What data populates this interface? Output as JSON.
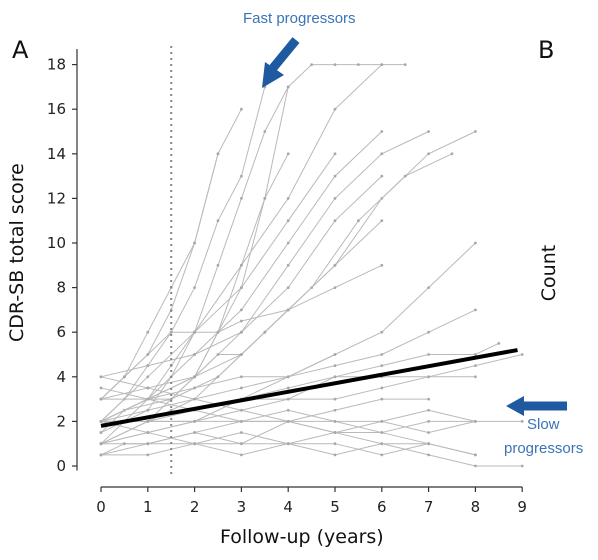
{
  "panel_labels": {
    "left": "A",
    "right": "B"
  },
  "right_axis_label": "Count",
  "annotations": {
    "fast": "Fast progressors",
    "slow_line1": "Slow",
    "slow_line2": "progressors"
  },
  "colors": {
    "trajectories": "#b9b9b9",
    "mean_line": "#000000",
    "arrow": "#1f5aa0",
    "annotation_text": "#3a74b7"
  },
  "chart_data": {
    "type": "line",
    "xlabel": "Follow-up (years)",
    "ylabel": "CDR-SB total score",
    "xlim": [
      -0.4,
      9.3
    ],
    "ylim": [
      -0.5,
      19
    ],
    "xticks": [
      0,
      1,
      2,
      3,
      4,
      5,
      6,
      7,
      8,
      9
    ],
    "yticks": [
      0,
      2,
      4,
      6,
      8,
      10,
      12,
      14,
      16,
      18
    ],
    "vertical_reference_line": {
      "x": 1.5,
      "style": "dotted"
    },
    "mean_trend": {
      "x": [
        0,
        8.9
      ],
      "y": [
        1.8,
        5.2
      ]
    },
    "series": [
      {
        "x": [
          0,
          0.5,
          1,
          1.5,
          2,
          2.5,
          3,
          3.5,
          4
        ],
        "y": [
          1,
          2,
          2.5,
          4,
          6,
          9,
          12,
          15,
          17
        ]
      },
      {
        "x": [
          0,
          0.5,
          1,
          1.5,
          2,
          2.5,
          3,
          3.5
        ],
        "y": [
          2,
          3,
          4.5,
          6,
          8,
          11,
          13,
          17
        ]
      },
      {
        "x": [
          0,
          0.5,
          1,
          1.5,
          2,
          3,
          4,
          5,
          6,
          6.5
        ],
        "y": [
          1.5,
          2.5,
          3,
          4.5,
          6,
          9,
          12,
          16,
          18,
          18
        ]
      },
      {
        "x": [
          0,
          1,
          2,
          3,
          3.5,
          4,
          4.5,
          5,
          5.5,
          6
        ],
        "y": [
          2,
          3,
          4,
          8,
          12,
          17,
          18,
          18,
          18,
          18
        ]
      },
      {
        "x": [
          0,
          0.5,
          1,
          1.5,
          2,
          2.5,
          3
        ],
        "y": [
          3,
          4,
          6,
          8,
          10,
          14,
          16
        ]
      },
      {
        "x": [
          0,
          1,
          2,
          3,
          4,
          5,
          6,
          7,
          8
        ],
        "y": [
          2,
          2.5,
          3,
          5,
          7,
          9,
          12,
          14,
          15
        ]
      },
      {
        "x": [
          0,
          1,
          2,
          2.5,
          3,
          3.5,
          4
        ],
        "y": [
          1,
          2,
          4,
          6,
          9,
          12,
          14
        ]
      },
      {
        "x": [
          0,
          0.5,
          1.5,
          2.5,
          3.5,
          4.5,
          5.5,
          6.5,
          7.5
        ],
        "y": [
          2,
          2.5,
          3,
          4,
          6,
          8,
          11,
          13,
          14
        ]
      },
      {
        "x": [
          0,
          1,
          2,
          3,
          4,
          5,
          6,
          7
        ],
        "y": [
          3,
          3.5,
          4,
          6,
          9,
          12,
          14,
          15
        ]
      },
      {
        "x": [
          0,
          1,
          2,
          3,
          4,
          5,
          6,
          7,
          8
        ],
        "y": [
          1,
          1.5,
          2,
          3,
          4,
          5,
          6,
          8,
          10
        ]
      },
      {
        "x": [
          0,
          1,
          2,
          3,
          4,
          5,
          6
        ],
        "y": [
          2,
          3,
          5,
          7,
          10,
          13,
          15
        ]
      },
      {
        "x": [
          0,
          0.5,
          1,
          1.5,
          2,
          2.5
        ],
        "y": [
          3,
          4,
          5,
          7,
          10,
          14
        ]
      },
      {
        "x": [
          0,
          1,
          2,
          3,
          4,
          5,
          6,
          7,
          8,
          8.5
        ],
        "y": [
          2,
          2,
          2.5,
          3,
          3.5,
          4,
          4.5,
          5,
          5,
          5.5
        ]
      },
      {
        "x": [
          0,
          1,
          2,
          3,
          4,
          5,
          6,
          7,
          8
        ],
        "y": [
          1,
          1,
          1.5,
          1,
          2,
          1.5,
          2,
          1.5,
          2
        ]
      },
      {
        "x": [
          0,
          1,
          2,
          3,
          4,
          5,
          6,
          7,
          8,
          9
        ],
        "y": [
          0.5,
          1,
          1,
          0.5,
          1,
          0.5,
          1,
          0.5,
          0,
          0
        ]
      },
      {
        "x": [
          0,
          1,
          2,
          3,
          4,
          5,
          6,
          7
        ],
        "y": [
          4,
          3.5,
          3,
          2.5,
          2,
          2,
          1.5,
          1
        ]
      },
      {
        "x": [
          0,
          1,
          2,
          3,
          4,
          5,
          6,
          7,
          8
        ],
        "y": [
          3,
          3,
          3.5,
          4,
          4,
          4.5,
          5,
          6,
          7
        ]
      },
      {
        "x": [
          0,
          0.5,
          1,
          1.5,
          2,
          3,
          4,
          5
        ],
        "y": [
          1.5,
          2,
          2,
          2.5,
          3,
          3.5,
          4,
          5
        ]
      },
      {
        "x": [
          0,
          1,
          2,
          3,
          4,
          5,
          6,
          7,
          8
        ],
        "y": [
          2,
          1.5,
          1,
          1.5,
          1,
          1,
          0.5,
          1,
          0.5
        ]
      },
      {
        "x": [
          0,
          0.5,
          1,
          1.5,
          2,
          2.5,
          3,
          4,
          5,
          6
        ],
        "y": [
          3,
          4,
          5,
          6,
          6,
          6,
          6.5,
          7,
          8,
          9
        ]
      },
      {
        "x": [
          0,
          1,
          2,
          3,
          4,
          5,
          6
        ],
        "y": [
          2,
          3,
          4,
          5,
          7,
          9,
          11
        ]
      },
      {
        "x": [
          0,
          1,
          2,
          3,
          4,
          5,
          6,
          7,
          8
        ],
        "y": [
          1,
          2,
          2,
          3,
          3,
          4,
          4,
          4,
          4
        ]
      },
      {
        "x": [
          0,
          0.5,
          1,
          2,
          3,
          4,
          5,
          6,
          7
        ],
        "y": [
          0.5,
          1,
          1,
          1.5,
          2,
          2,
          2.5,
          3,
          3
        ]
      },
      {
        "x": [
          0,
          1,
          2,
          3,
          4,
          5,
          6,
          7,
          8
        ],
        "y": [
          3.5,
          3,
          2.5,
          2,
          2,
          1.5,
          1,
          1,
          0.5
        ]
      },
      {
        "x": [
          0,
          1,
          2,
          3,
          4,
          5,
          6,
          7,
          8,
          9
        ],
        "y": [
          2,
          2,
          2,
          2,
          2.5,
          2,
          2,
          2.5,
          2,
          2
        ]
      },
      {
        "x": [
          0,
          1,
          2,
          3,
          4,
          5,
          6
        ],
        "y": [
          4,
          4.5,
          5,
          6,
          8,
          11,
          13
        ]
      },
      {
        "x": [
          0,
          1,
          2,
          3,
          4,
          5,
          6,
          7,
          8,
          9
        ],
        "y": [
          1,
          1.5,
          2,
          2.5,
          3,
          3,
          3.5,
          4,
          4.5,
          5
        ]
      },
      {
        "x": [
          0,
          0.5,
          1,
          1.5,
          2,
          2.5,
          3,
          3.5,
          4
        ],
        "y": [
          2,
          2,
          3,
          3,
          4,
          5,
          5,
          6,
          7
        ]
      },
      {
        "x": [
          0,
          1,
          2,
          3,
          4,
          5
        ],
        "y": [
          2,
          4,
          6,
          8,
          11,
          14
        ]
      },
      {
        "x": [
          0,
          1,
          2,
          3,
          4,
          5,
          6,
          7,
          8
        ],
        "y": [
          0.5,
          0.5,
          1,
          1,
          1,
          1.5,
          1.5,
          2,
          2
        ]
      }
    ]
  }
}
